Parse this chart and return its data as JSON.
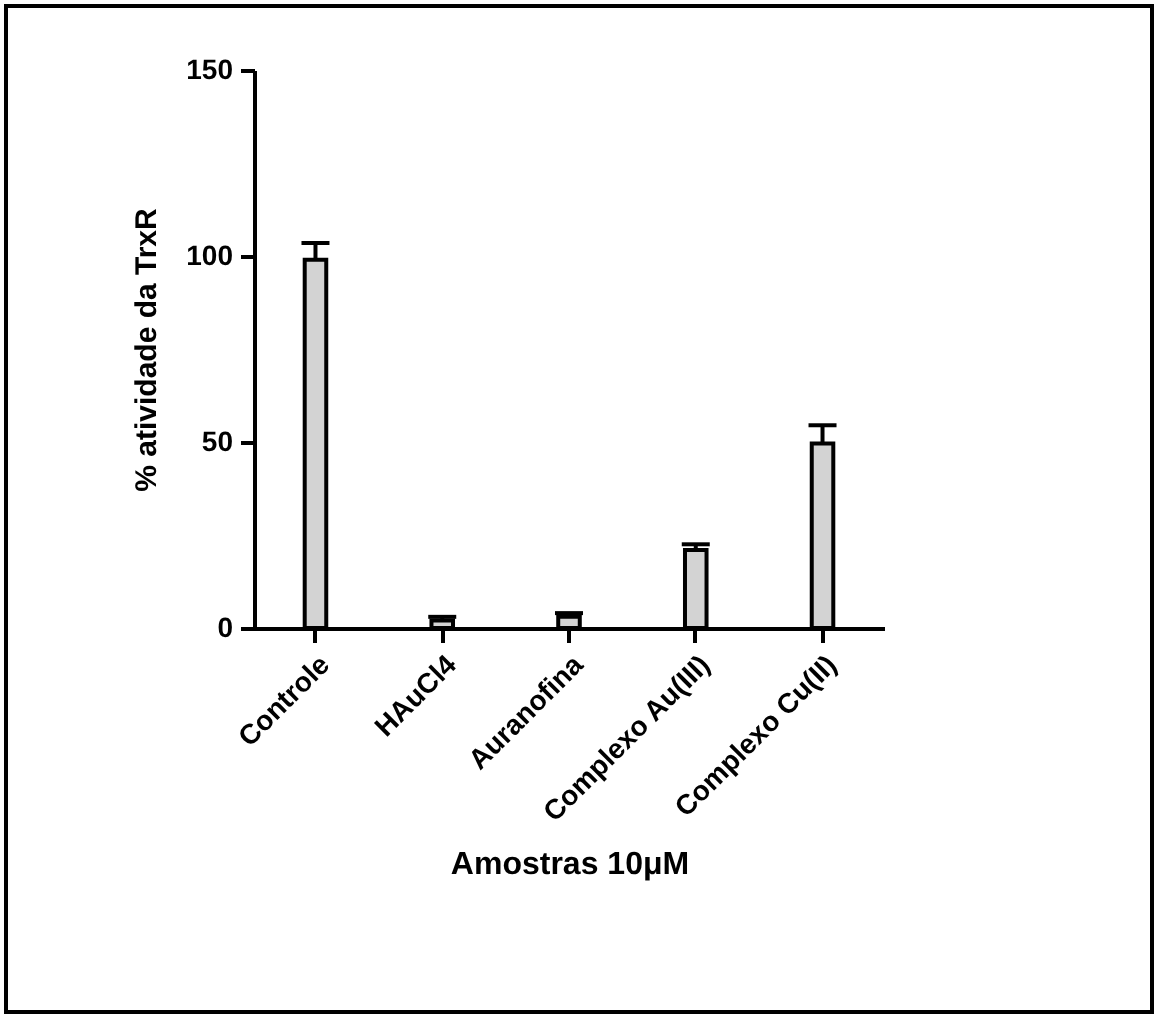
{
  "chart_data": {
    "type": "bar",
    "xlabel": "Amostras 10μM",
    "ylabel": "% atividade da TrxR",
    "categories": [
      "Controle",
      "HAuCl4",
      "Auranofina",
      "Complexo Au(III)",
      "Complexo Cu(II)"
    ],
    "values": [
      99,
      2,
      3,
      21,
      49.6
    ],
    "errors": [
      [
        99,
        103.5
      ],
      [
        2,
        3
      ],
      [
        3,
        4
      ],
      [
        21,
        22.5
      ],
      [
        49.6,
        54.5
      ]
    ],
    "color": "#d3d3d3",
    "ylim": [
      0,
      150
    ],
    "yticks": [
      0,
      50,
      100,
      150
    ],
    "grid": false
  }
}
